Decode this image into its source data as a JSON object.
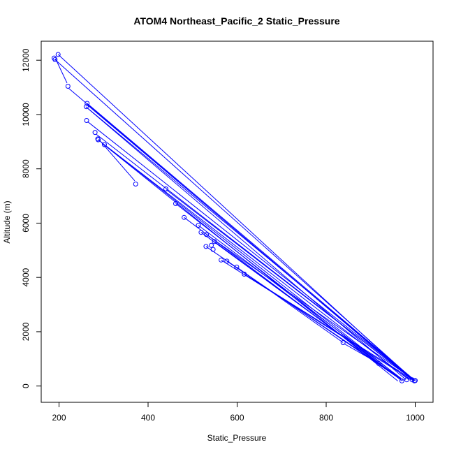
{
  "chart_data": {
    "type": "line",
    "title": "ATOM4 Northeast_Pacific_2 Static_Pressure",
    "xlabel": "Static_Pressure",
    "ylabel": "Altitude (m)",
    "xlim": [
      160,
      1040
    ],
    "ylim": [
      -600,
      12700
    ],
    "x_ticks": [
      200,
      400,
      600,
      800,
      1000
    ],
    "y_ticks": [
      0,
      2000,
      4000,
      6000,
      8000,
      10000,
      12000
    ],
    "grid": false,
    "legend": "none",
    "series_color": "#0000ff",
    "points": [
      [
        189,
        12080
      ],
      [
        191,
        12020
      ],
      [
        198,
        12210
      ],
      [
        220,
        11040
      ],
      [
        263,
        10410
      ],
      [
        261,
        10290
      ],
      [
        262,
        9780
      ],
      [
        281,
        9340
      ],
      [
        287,
        9100
      ],
      [
        288,
        9070
      ],
      [
        302,
        8890
      ],
      [
        372,
        7440
      ],
      [
        440,
        7260
      ],
      [
        462,
        6720
      ],
      [
        481,
        6210
      ],
      [
        513,
        5920
      ],
      [
        519,
        5660
      ],
      [
        531,
        5580
      ],
      [
        530,
        5140
      ],
      [
        542,
        5180
      ],
      [
        546,
        5030
      ],
      [
        549,
        5320
      ],
      [
        564,
        4640
      ],
      [
        577,
        4600
      ],
      [
        599,
        4380
      ],
      [
        616,
        4120
      ],
      [
        838,
        1600
      ],
      [
        918,
        830
      ],
      [
        970,
        190
      ],
      [
        981,
        230
      ],
      [
        993,
        230
      ],
      [
        998,
        190
      ],
      [
        1000,
        200
      ]
    ],
    "segments": [
      [
        [
          198,
          12210
        ],
        [
          991,
          255
        ]
      ],
      [
        [
          192,
          12060
        ],
        [
          218,
          11160
        ]
      ],
      [
        [
          222,
          10960
        ],
        [
          992,
          240
        ]
      ],
      [
        [
          191,
          12020
        ],
        [
          998,
          205
        ]
      ],
      [
        [
          265,
          10330
        ],
        [
          995,
          225
        ]
      ],
      [
        [
          263,
          10410
        ],
        [
          998,
          215
        ]
      ],
      [
        [
          262,
          10260
        ],
        [
          979,
          235
        ]
      ],
      [
        [
          264,
          9740
        ],
        [
          999,
          200
        ]
      ],
      [
        [
          283,
          9280
        ],
        [
          996,
          220
        ]
      ],
      [
        [
          289,
          9060
        ],
        [
          973,
          205
        ]
      ],
      [
        [
          302,
          8890
        ],
        [
          986,
          228
        ]
      ],
      [
        [
          304,
          8850
        ],
        [
          961,
          185
        ]
      ],
      [
        [
          289,
          9090
        ],
        [
          370,
          7560
        ]
      ],
      [
        [
          260,
          10290
        ],
        [
          1000,
          200
        ]
      ],
      [
        [
          441,
          7230
        ],
        [
          998,
          195
        ]
      ],
      [
        [
          462,
          6720
        ],
        [
          970,
          190
        ]
      ],
      [
        [
          481,
          6210
        ],
        [
          941,
          540
        ]
      ],
      [
        [
          513,
          5920
        ],
        [
          963,
          350
        ]
      ],
      [
        [
          519,
          5660
        ],
        [
          920,
          830
        ]
      ],
      [
        [
          531,
          5580
        ],
        [
          997,
          225
        ]
      ],
      [
        [
          530,
          5140
        ],
        [
          955,
          380
        ]
      ],
      [
        [
          549,
          5320
        ],
        [
          968,
          250
        ]
      ],
      [
        [
          564,
          4640
        ],
        [
          992,
          220
        ]
      ],
      [
        [
          577,
          4600
        ],
        [
          960,
          360
        ]
      ],
      [
        [
          599,
          4380
        ],
        [
          838,
          1600
        ]
      ],
      [
        [
          616,
          4120
        ],
        [
          998,
          200
        ]
      ],
      [
        [
          840,
          1560
        ],
        [
          918,
          830
        ]
      ],
      [
        [
          922,
          790
        ],
        [
          968,
          290
        ]
      ]
    ]
  }
}
